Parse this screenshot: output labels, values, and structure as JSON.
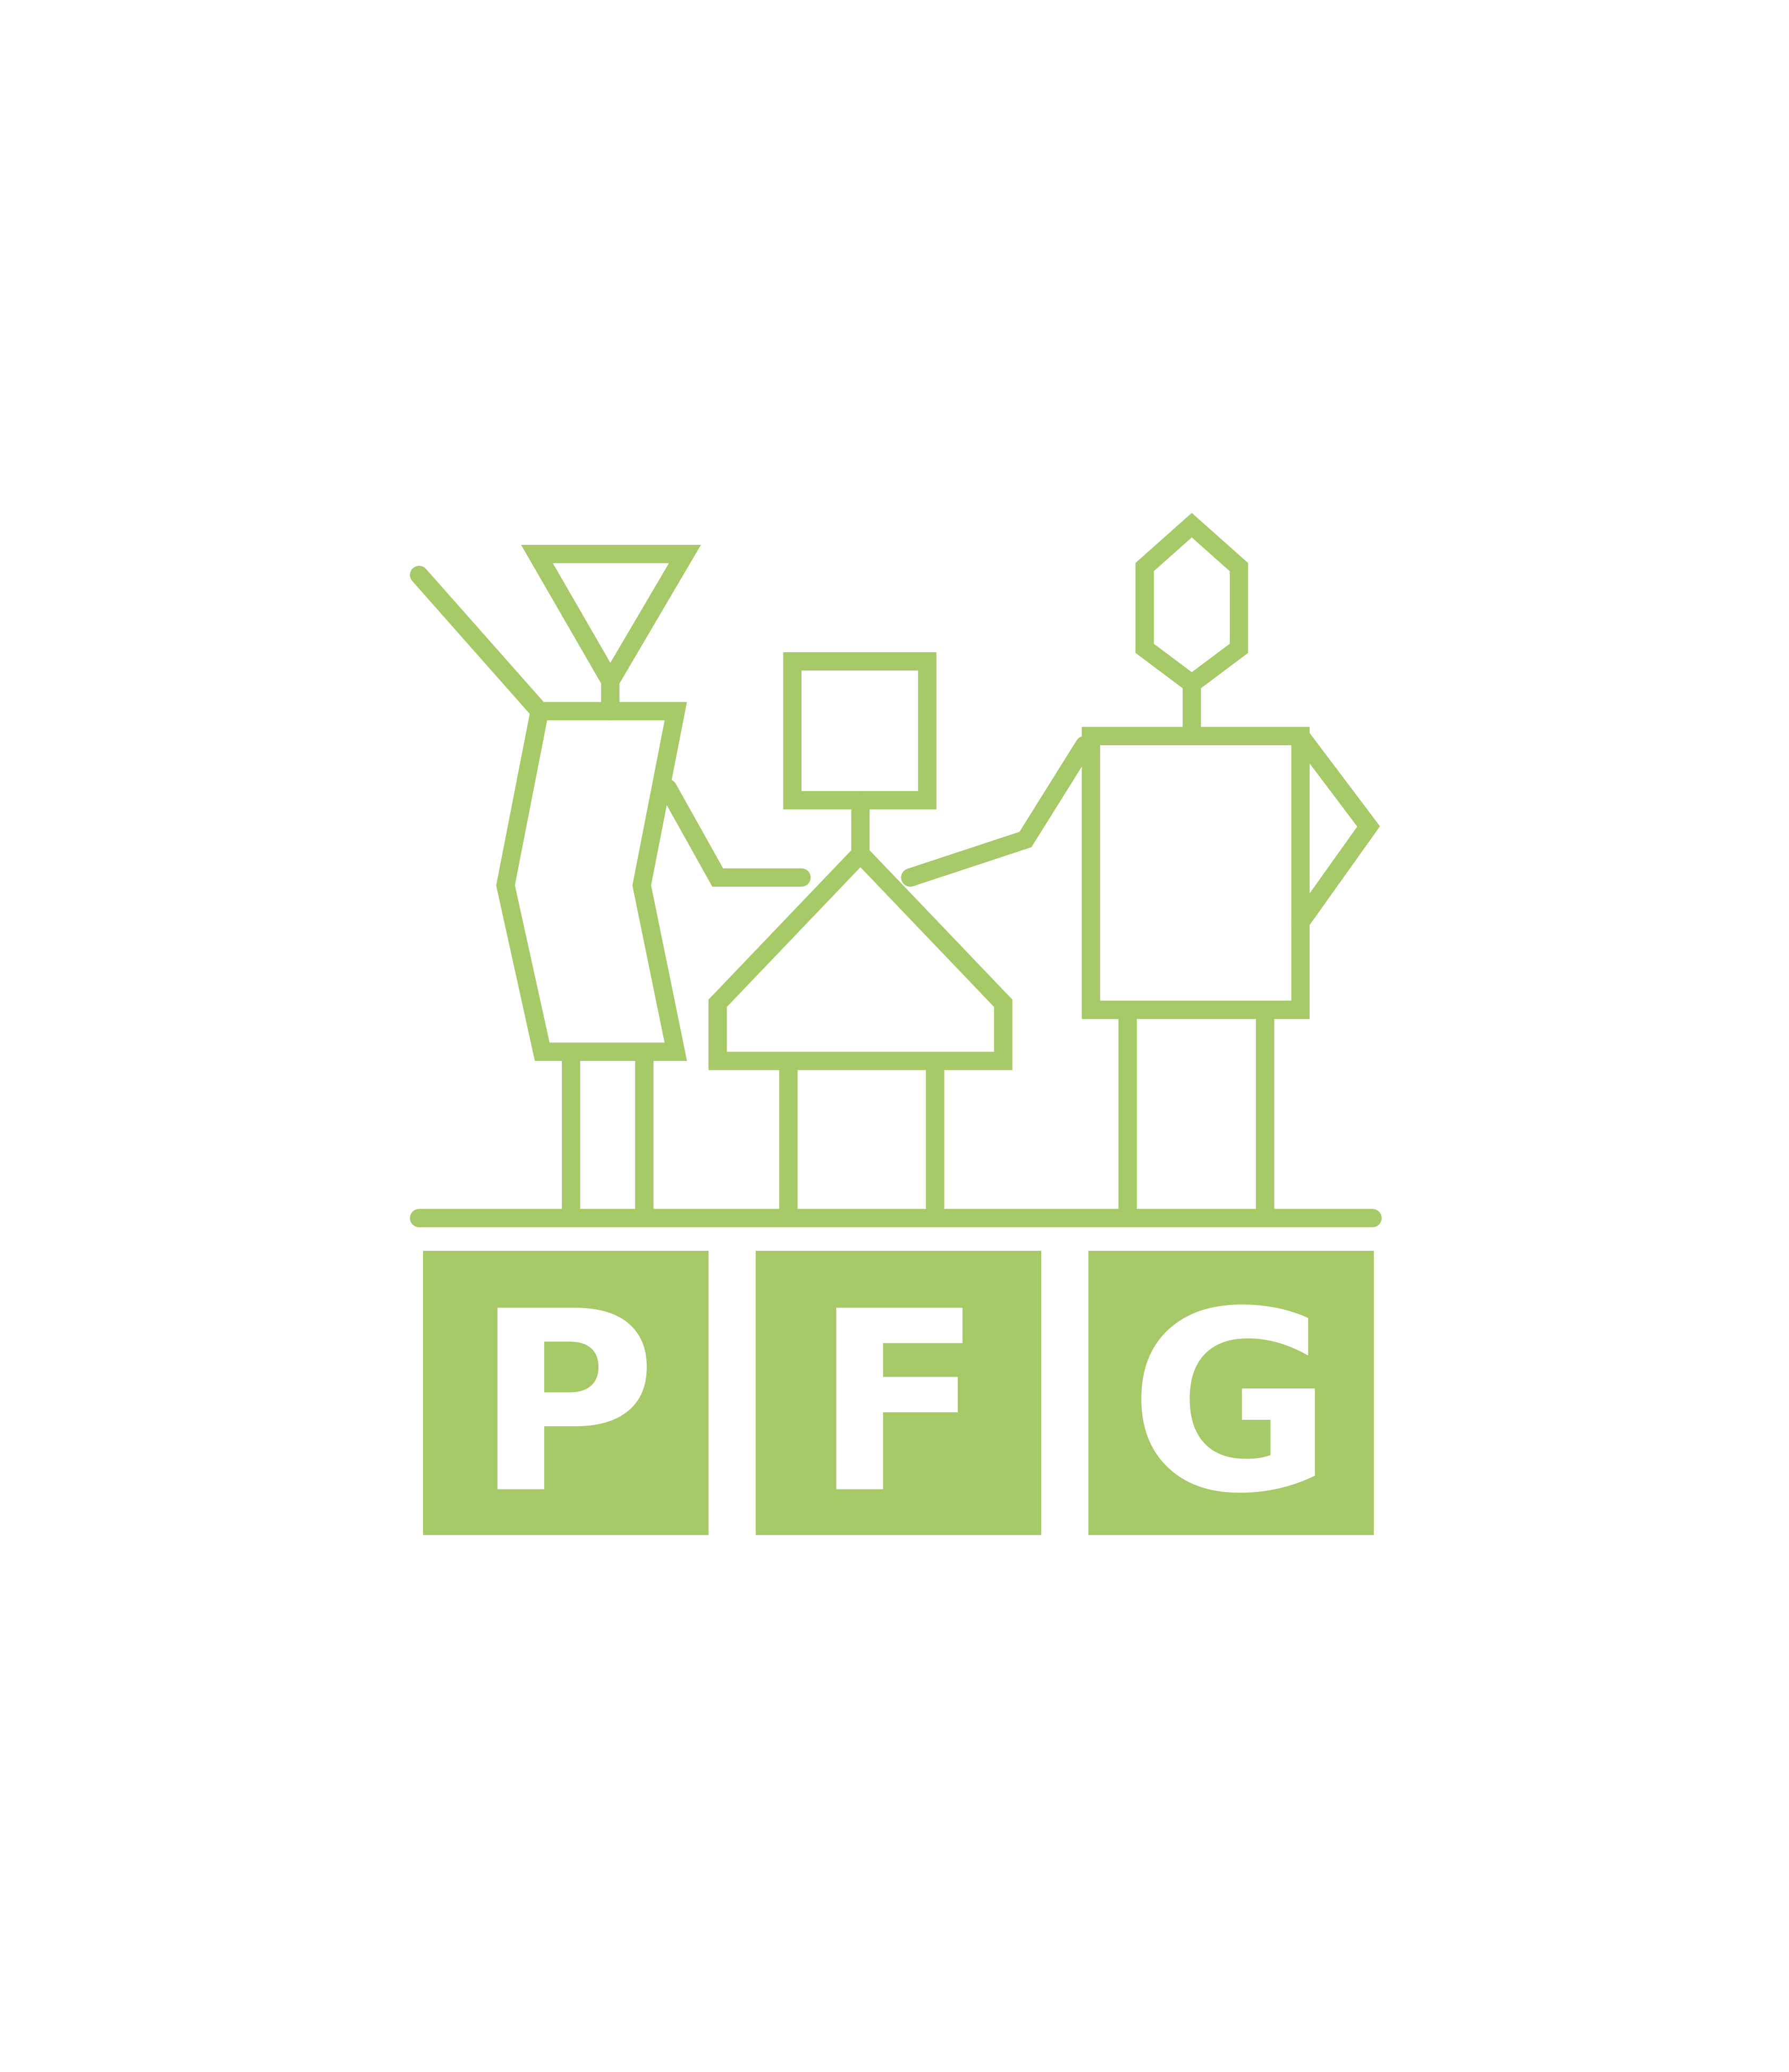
{
  "logo": {
    "letters": [
      "P",
      "F",
      "G"
    ],
    "color": "#a6ca67",
    "letter_color": "#ffffff",
    "background": "#ffffff",
    "figure_icons": [
      "woman-waving-icon",
      "child-icon",
      "man-icon"
    ]
  }
}
